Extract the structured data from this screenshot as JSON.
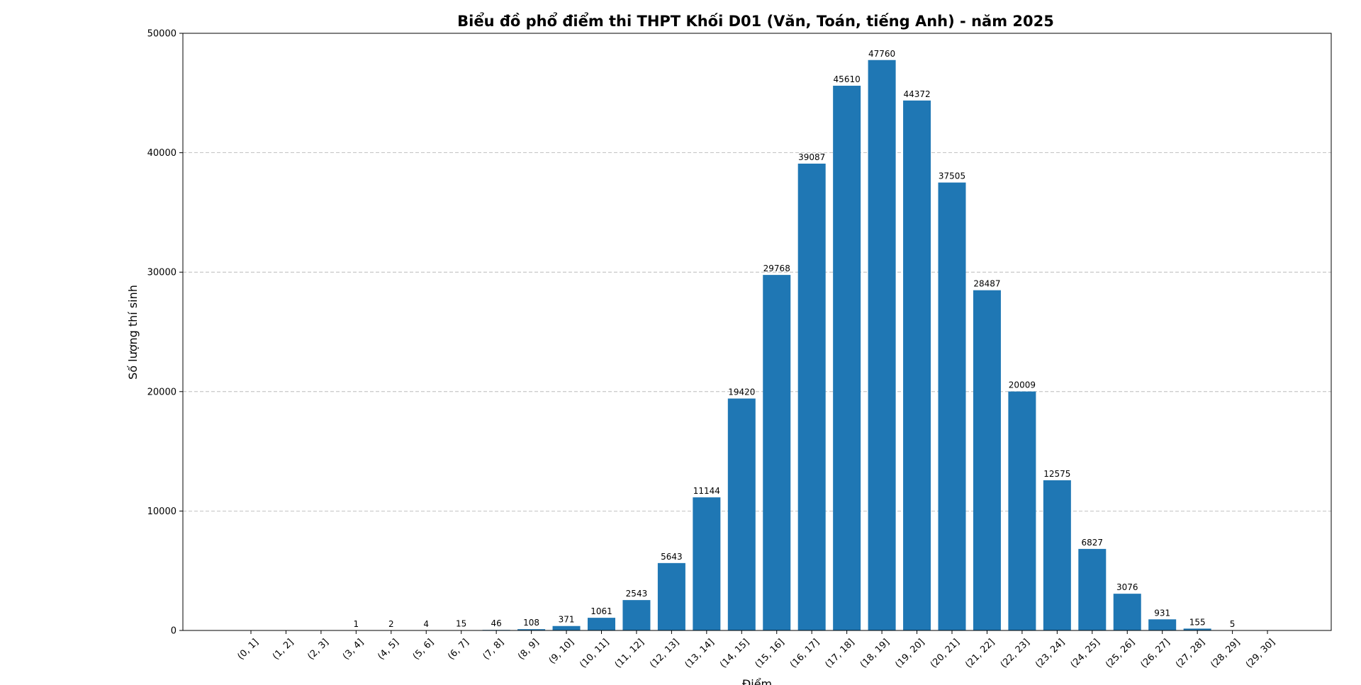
{
  "chart_data": {
    "type": "bar",
    "title": "Biểu đồ phổ điểm thi THPT Khối D01 (Văn, Toán, tiếng Anh) - năm 2025",
    "xlabel": "Điểm",
    "ylabel": "Số lượng thí sinh",
    "categories": [
      "(0, 1]",
      "(1, 2]",
      "(2, 3]",
      "(3, 4]",
      "(4, 5]",
      "(5, 6]",
      "(6, 7]",
      "(7, 8]",
      "(8, 9]",
      "(9, 10]",
      "(10, 11]",
      "(11, 12]",
      "(12, 13]",
      "(13, 14]",
      "(14, 15]",
      "(15, 16]",
      "(16, 17]",
      "(17, 18]",
      "(18, 19]",
      "(19, 20]",
      "(20, 21]",
      "(21, 22]",
      "(22, 23]",
      "(23, 24]",
      "(24, 25]",
      "(25, 26]",
      "(26, 27]",
      "(27, 28]",
      "(28, 29]",
      "(29, 30]"
    ],
    "values": [
      0,
      0,
      0,
      1,
      2,
      4,
      15,
      46,
      108,
      371,
      1061,
      2543,
      5643,
      11144,
      19420,
      29768,
      39087,
      45610,
      47760,
      44372,
      37505,
      28487,
      20009,
      12575,
      6827,
      3076,
      931,
      155,
      5,
      0
    ],
    "data_labels": [
      "",
      "",
      "",
      "1",
      "2",
      "4",
      "15",
      "46",
      "108",
      "371",
      "1061",
      "2543",
      "5643",
      "11144",
      "19420",
      "29768",
      "39087",
      "45610",
      "47760",
      "44372",
      "37505",
      "28487",
      "20009",
      "12575",
      "6827",
      "3076",
      "931",
      "155",
      "5",
      ""
    ],
    "ylim": [
      0,
      50000
    ],
    "yticks": [
      0,
      10000,
      20000,
      30000,
      40000,
      50000
    ],
    "ytick_labels": [
      "0",
      "10000",
      "20000",
      "30000",
      "40000",
      "50000"
    ],
    "grid": "y-axis dashed",
    "colors": {
      "bar": "#1f77b4",
      "grid": "#b0b0b0"
    }
  }
}
